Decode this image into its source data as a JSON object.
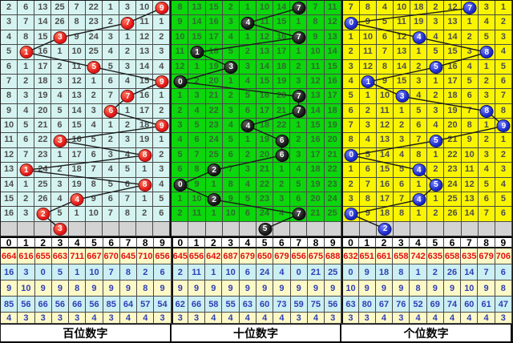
{
  "header_digits": [
    "0",
    "1",
    "2",
    "3",
    "4",
    "5",
    "6",
    "7",
    "8",
    "9"
  ],
  "stat_row_styles": [
    {
      "bg": "#fdf9c6",
      "fg": "#e01212"
    },
    {
      "bg": "#cbeff2",
      "fg": "#2e3eb6"
    },
    {
      "bg": "#fdf9c6",
      "fg": "#2e3eb6"
    },
    {
      "bg": "#cbeff2",
      "fg": "#2e3eb6"
    },
    {
      "bg": "#fdf9c6",
      "fg": "#2e3eb6"
    }
  ],
  "gray_row_bg": "#d3d3d3",
  "line_color": "#1b1b1b",
  "panels": [
    {
      "id": "hundreds",
      "label": "百位数字",
      "panel_bg": "#d5f4f1",
      "num_color": "#4d4d4d",
      "ball_color": "#e11414",
      "ball_hi": "#ff7a60",
      "ball_border": "#7d0f0f",
      "grid": [
        [
          "2",
          "6",
          "13",
          "25",
          "7",
          "22",
          "1",
          "3",
          "10",
          "*9"
        ],
        [
          "3",
          "7",
          "14",
          "26",
          "8",
          "23",
          "2",
          "*7",
          "11",
          "1"
        ],
        [
          "4",
          "8",
          "15",
          "*3",
          "9",
          "24",
          "3",
          "1",
          "12",
          "2"
        ],
        [
          "5",
          "*1",
          "16",
          "1",
          "10",
          "25",
          "4",
          "2",
          "13",
          "3"
        ],
        [
          "6",
          "1",
          "17",
          "2",
          "11",
          "*5",
          "5",
          "3",
          "14",
          "4"
        ],
        [
          "7",
          "2",
          "18",
          "3",
          "12",
          "1",
          "6",
          "4",
          "15",
          "*9"
        ],
        [
          "8",
          "3",
          "19",
          "4",
          "13",
          "2",
          "7",
          "*7",
          "16",
          "1"
        ],
        [
          "9",
          "4",
          "20",
          "5",
          "14",
          "3",
          "*6",
          "1",
          "17",
          "2"
        ],
        [
          "10",
          "5",
          "21",
          "6",
          "15",
          "4",
          "1",
          "2",
          "18",
          "*9"
        ],
        [
          "11",
          "6",
          "22",
          "*3",
          "16",
          "5",
          "2",
          "3",
          "19",
          "1"
        ],
        [
          "12",
          "7",
          "23",
          "1",
          "17",
          "6",
          "3",
          "4",
          "*8",
          "2"
        ],
        [
          "13",
          "*1",
          "24",
          "2",
          "18",
          "7",
          "4",
          "5",
          "1",
          "3"
        ],
        [
          "14",
          "1",
          "25",
          "3",
          "19",
          "8",
          "5",
          "6",
          "*8",
          "4"
        ],
        [
          "15",
          "2",
          "26",
          "4",
          "*4",
          "9",
          "6",
          "7",
          "1",
          "5"
        ],
        [
          "16",
          "3",
          "*2",
          "5",
          "1",
          "10",
          "7",
          "8",
          "2",
          "6"
        ]
      ],
      "gray_row_ball": "3",
      "stats": [
        [
          "664",
          "616",
          "655",
          "663",
          "711",
          "667",
          "670",
          "645",
          "710",
          "656"
        ],
        [
          "16",
          "3",
          "0",
          "5",
          "1",
          "10",
          "7",
          "8",
          "2",
          "6"
        ],
        [
          "9",
          "10",
          "9",
          "9",
          "8",
          "9",
          "9",
          "9",
          "8",
          "9"
        ],
        [
          "85",
          "56",
          "66",
          "56",
          "66",
          "56",
          "85",
          "64",
          "57",
          "54"
        ],
        [
          "4",
          "3",
          "3",
          "3",
          "3",
          "4",
          "3",
          "4",
          "4",
          "3"
        ]
      ]
    },
    {
      "id": "tens",
      "label": "十位数字",
      "panel_bg": "#0cd60c",
      "num_color": "#2f6b2f",
      "ball_color": "#161616",
      "ball_hi": "#606060",
      "ball_border": "#000000",
      "grid": [
        [
          "8",
          "13",
          "15",
          "2",
          "1",
          "10",
          "14",
          "*7",
          "7",
          "11"
        ],
        [
          "9",
          "14",
          "16",
          "3",
          "*4",
          "11",
          "15",
          "1",
          "8",
          "12"
        ],
        [
          "10",
          "15",
          "17",
          "4",
          "1",
          "12",
          "16",
          "*7",
          "9",
          "13"
        ],
        [
          "11",
          "*1",
          "18",
          "5",
          "2",
          "13",
          "17",
          "1",
          "10",
          "14"
        ],
        [
          "12",
          "1",
          "19",
          "*3",
          "3",
          "14",
          "18",
          "2",
          "11",
          "15"
        ],
        [
          "*0",
          "2",
          "20",
          "1",
          "4",
          "15",
          "19",
          "3",
          "12",
          "16"
        ],
        [
          "1",
          "3",
          "21",
          "2",
          "5",
          "16",
          "20",
          "*7",
          "13",
          "17"
        ],
        [
          "2",
          "4",
          "22",
          "3",
          "6",
          "17",
          "21",
          "*7",
          "14",
          "18"
        ],
        [
          "3",
          "5",
          "23",
          "4",
          "*4",
          "18",
          "22",
          "1",
          "15",
          "19"
        ],
        [
          "4",
          "6",
          "24",
          "5",
          "1",
          "19",
          "*6",
          "2",
          "16",
          "20"
        ],
        [
          "5",
          "7",
          "25",
          "6",
          "2",
          "20",
          "*6",
          "3",
          "17",
          "21"
        ],
        [
          "6",
          "8",
          "*2",
          "7",
          "3",
          "21",
          "1",
          "4",
          "18",
          "22"
        ],
        [
          "*0",
          "9",
          "1",
          "8",
          "4",
          "22",
          "2",
          "5",
          "19",
          "23"
        ],
        [
          "1",
          "10",
          "*2",
          "9",
          "5",
          "23",
          "3",
          "6",
          "20",
          "24"
        ],
        [
          "2",
          "11",
          "1",
          "10",
          "6",
          "24",
          "4",
          "*7",
          "21",
          "25"
        ]
      ],
      "gray_row_ball": "5",
      "stats": [
        [
          "645",
          "656",
          "642",
          "687",
          "679",
          "650",
          "679",
          "656",
          "675",
          "688"
        ],
        [
          "2",
          "11",
          "1",
          "10",
          "6",
          "24",
          "4",
          "0",
          "21",
          "25"
        ],
        [
          "9",
          "9",
          "9",
          "9",
          "9",
          "9",
          "9",
          "9",
          "9",
          "9"
        ],
        [
          "62",
          "66",
          "58",
          "55",
          "63",
          "60",
          "73",
          "59",
          "75",
          "56"
        ],
        [
          "3",
          "3",
          "4",
          "4",
          "4",
          "4",
          "4",
          "3",
          "4",
          "3"
        ]
      ]
    },
    {
      "id": "units",
      "label": "个位数字",
      "panel_bg": "#f9f400",
      "num_color": "#4d4d4d",
      "ball_color": "#1a28c8",
      "ball_hi": "#7682ff",
      "ball_border": "#0b1470",
      "grid": [
        [
          "7",
          "8",
          "4",
          "10",
          "18",
          "2",
          "12",
          "*7",
          "3",
          "1"
        ],
        [
          "*0",
          "9",
          "5",
          "11",
          "19",
          "3",
          "13",
          "1",
          "4",
          "2"
        ],
        [
          "1",
          "10",
          "6",
          "12",
          "*4",
          "4",
          "14",
          "2",
          "5",
          "3"
        ],
        [
          "2",
          "11",
          "7",
          "13",
          "1",
          "5",
          "15",
          "3",
          "*8",
          "4"
        ],
        [
          "3",
          "12",
          "8",
          "14",
          "2",
          "*5",
          "16",
          "4",
          "1",
          "5"
        ],
        [
          "4",
          "*1",
          "9",
          "15",
          "3",
          "1",
          "17",
          "5",
          "2",
          "6"
        ],
        [
          "5",
          "1",
          "10",
          "*3",
          "4",
          "2",
          "18",
          "6",
          "3",
          "7"
        ],
        [
          "6",
          "2",
          "11",
          "1",
          "5",
          "3",
          "19",
          "7",
          "*8",
          "8"
        ],
        [
          "7",
          "3",
          "12",
          "2",
          "6",
          "4",
          "20",
          "8",
          "1",
          "*9"
        ],
        [
          "8",
          "4",
          "13",
          "3",
          "7",
          "*5",
          "21",
          "9",
          "2",
          "1"
        ],
        [
          "*0",
          "5",
          "14",
          "4",
          "8",
          "1",
          "22",
          "10",
          "3",
          "2"
        ],
        [
          "1",
          "6",
          "15",
          "5",
          "*4",
          "2",
          "23",
          "11",
          "4",
          "3"
        ],
        [
          "2",
          "7",
          "16",
          "6",
          "1",
          "*5",
          "24",
          "12",
          "5",
          "4"
        ],
        [
          "3",
          "8",
          "17",
          "7",
          "*4",
          "1",
          "25",
          "13",
          "6",
          "5"
        ],
        [
          "*0",
          "9",
          "18",
          "8",
          "1",
          "2",
          "26",
          "14",
          "7",
          "6"
        ]
      ],
      "gray_row_ball": "2",
      "stats": [
        [
          "632",
          "651",
          "661",
          "658",
          "742",
          "635",
          "658",
          "635",
          "679",
          "706"
        ],
        [
          "0",
          "9",
          "18",
          "8",
          "1",
          "2",
          "26",
          "14",
          "7",
          "6"
        ],
        [
          "10",
          "9",
          "9",
          "9",
          "8",
          "9",
          "9",
          "10",
          "9",
          "8"
        ],
        [
          "63",
          "80",
          "67",
          "76",
          "52",
          "69",
          "74",
          "60",
          "61",
          "47"
        ],
        [
          "3",
          "3",
          "4",
          "3",
          "4",
          "4",
          "4",
          "4",
          "4",
          "3"
        ]
      ]
    }
  ],
  "chart_data": {
    "type": "table",
    "description": "3-digit lottery trend chart: per-column miss counts with drawn digit balls over 15 periods plus a pending gray row",
    "columns": [
      "0",
      "1",
      "2",
      "3",
      "4",
      "5",
      "6",
      "7",
      "8",
      "9"
    ],
    "series": [
      {
        "name": "百位数字",
        "drawn_digits": [
          9,
          7,
          3,
          1,
          5,
          9,
          7,
          6,
          9,
          3,
          8,
          1,
          8,
          4,
          2
        ],
        "gray_row_digit": 3
      },
      {
        "name": "十位数字",
        "drawn_digits": [
          7,
          4,
          7,
          1,
          3,
          0,
          7,
          7,
          4,
          6,
          6,
          2,
          0,
          2,
          7
        ],
        "gray_row_digit": 5
      },
      {
        "name": "个位数字",
        "drawn_digits": [
          7,
          0,
          4,
          8,
          5,
          1,
          3,
          8,
          9,
          5,
          0,
          4,
          5,
          4,
          0
        ],
        "gray_row_digit": 2
      }
    ],
    "stat_rows_per_panel": [
      "total-count (red)",
      "current-miss",
      "average-miss",
      "max-miss",
      "ratio"
    ]
  }
}
